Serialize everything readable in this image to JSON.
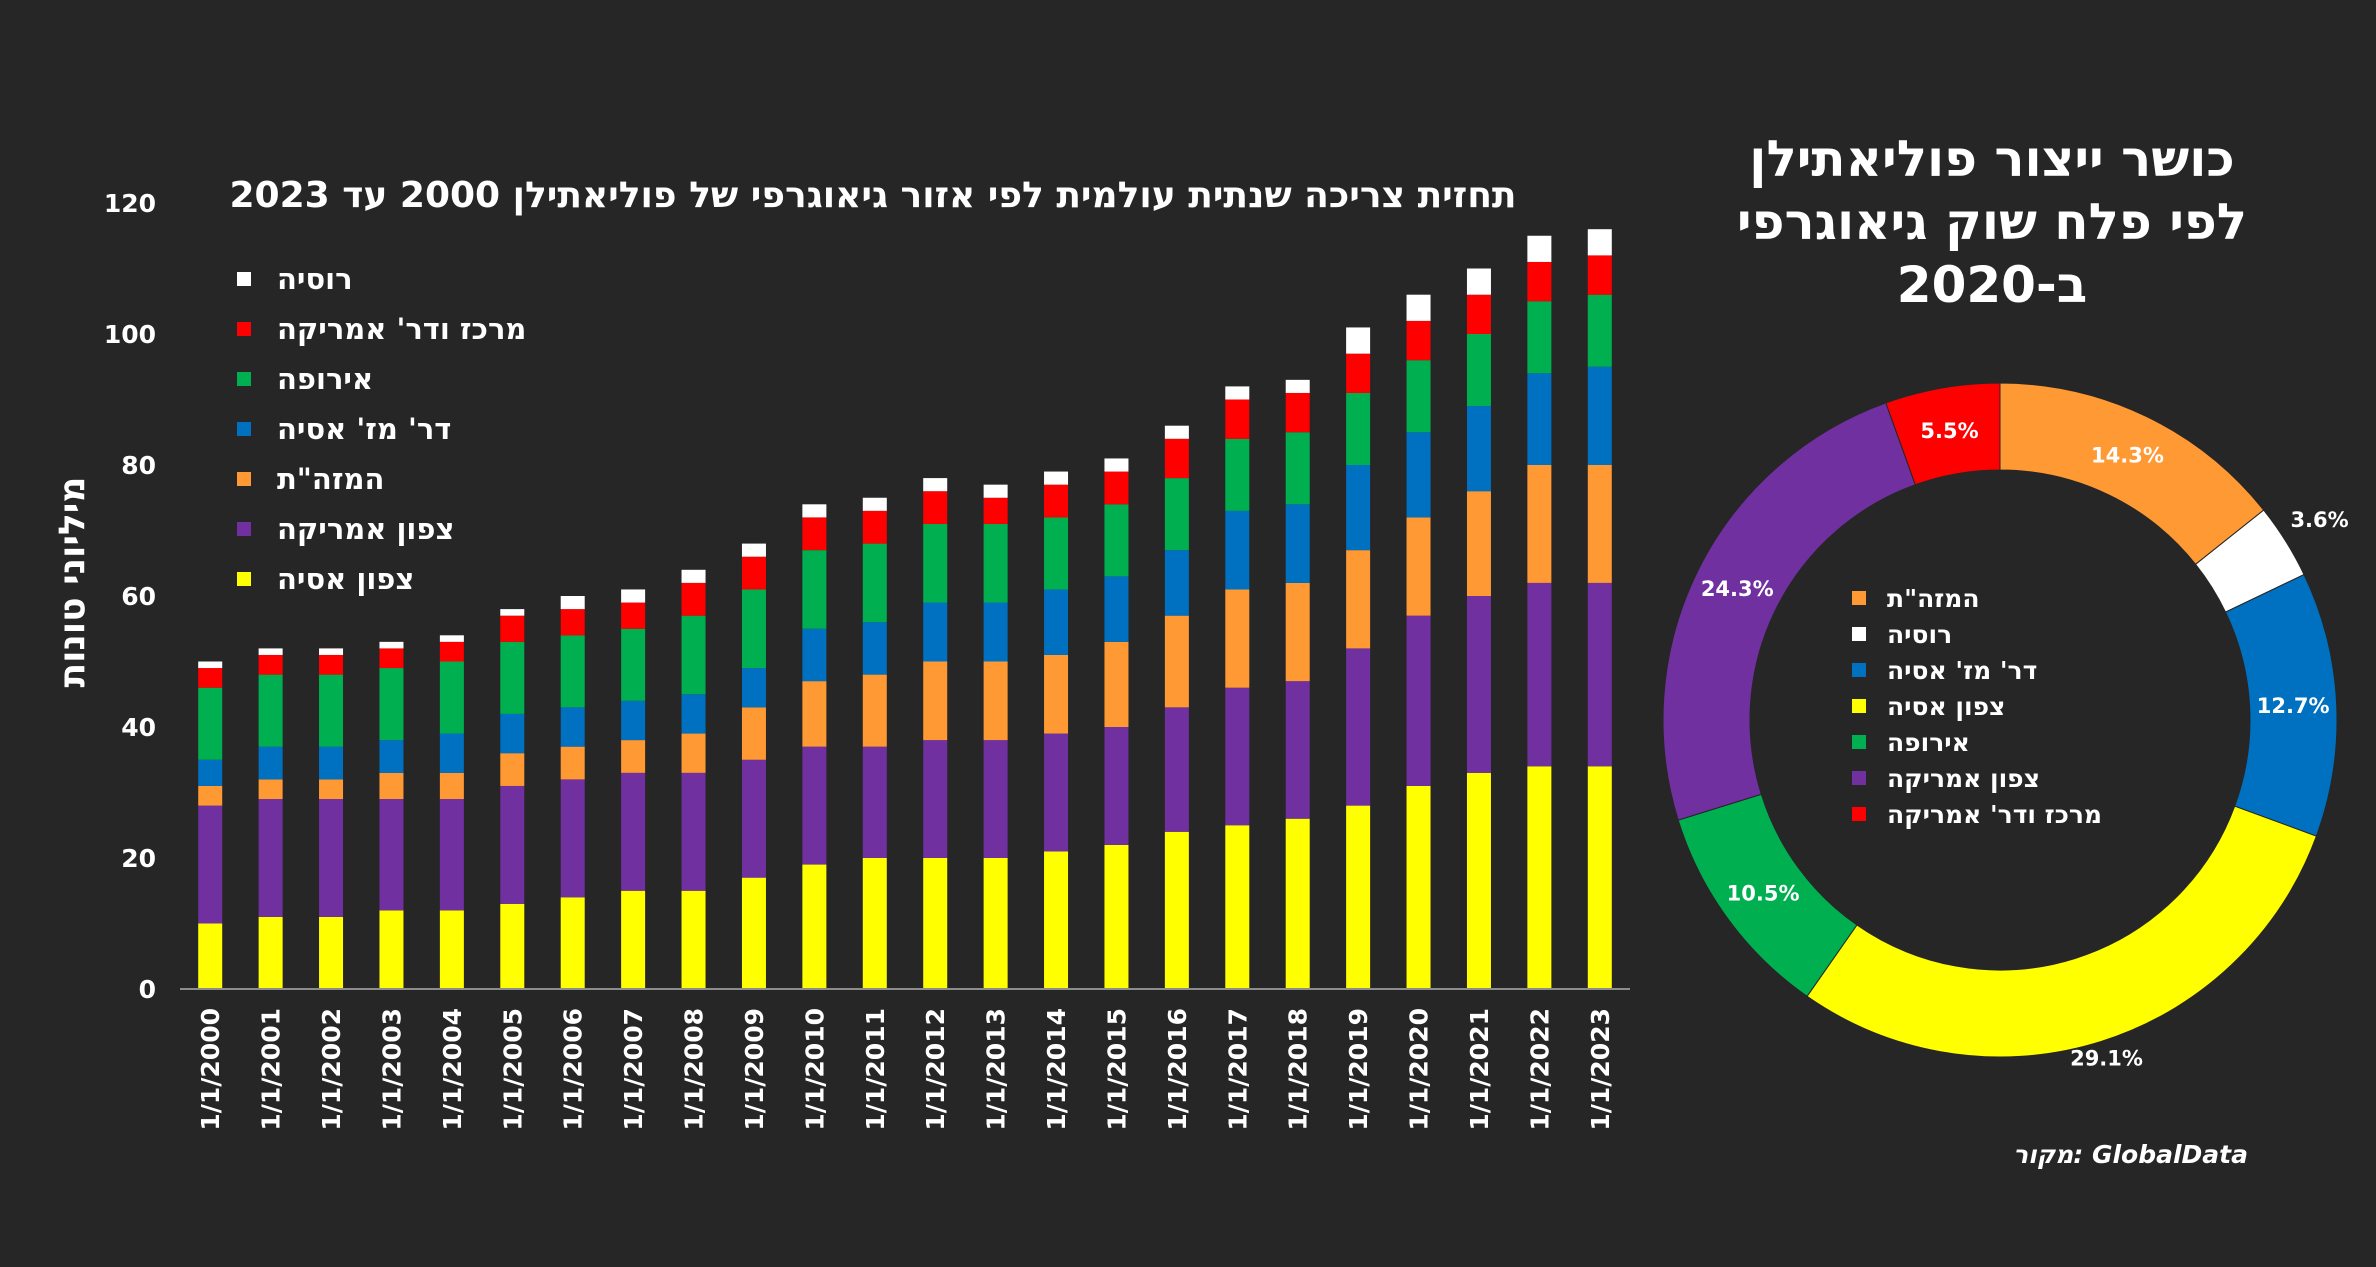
{
  "colors": {
    "background": "#262626",
    "russia": "#ffffff",
    "latam": "#ff0000",
    "europe": "#00b050",
    "sea": "#0070c0",
    "mideast": "#ff9933",
    "na": "#7030a0",
    "nea": "#ffff00"
  },
  "source_text": "מקור: GlobalData",
  "chart_data": [
    {
      "type": "bar",
      "stacked": true,
      "title": "תחזית צריכה שנתית עולמית לפי אזור גיאוגרפי של פוליאתילן 2000 עד 2023",
      "xlabel": "",
      "ylabel": "מיליוני טונות",
      "ylim": [
        0,
        120
      ],
      "yticks": [
        "0",
        "20",
        "40",
        "60",
        "80",
        "100",
        "120"
      ],
      "legend_position": "top-left",
      "categories": [
        "1/1/2000",
        "1/1/2001",
        "1/1/2002",
        "1/1/2003",
        "1/1/2004",
        "1/1/2005",
        "1/1/2006",
        "1/1/2007",
        "1/1/2008",
        "1/1/2009",
        "1/1/2010",
        "1/1/2011",
        "1/1/2012",
        "1/1/2013",
        "1/1/2014",
        "1/1/2015",
        "1/1/2016",
        "1/1/2017",
        "1/1/2018",
        "1/1/2019",
        "1/1/2020",
        "1/1/2021",
        "1/1/2022",
        "1/1/2023"
      ],
      "series": [
        {
          "name": "צפון אסיה",
          "color": "#ffff00",
          "values": [
            10,
            11,
            11,
            12,
            12,
            13,
            14,
            15,
            15,
            17,
            19,
            20,
            20,
            20,
            21,
            22,
            24,
            25,
            26,
            28,
            31,
            33,
            34,
            34
          ]
        },
        {
          "name": "צפון אמריקה",
          "color": "#7030a0",
          "values": [
            18,
            18,
            18,
            17,
            17,
            18,
            18,
            18,
            18,
            18,
            18,
            17,
            18,
            18,
            18,
            18,
            19,
            21,
            21,
            24,
            26,
            27,
            28,
            28
          ]
        },
        {
          "name": "המזה\"ת",
          "color": "#ff9933",
          "values": [
            3,
            3,
            3,
            4,
            4,
            5,
            5,
            5,
            6,
            8,
            10,
            11,
            12,
            12,
            12,
            13,
            14,
            15,
            15,
            15,
            15,
            16,
            18,
            18
          ]
        },
        {
          "name": "דר' מז' אסיה",
          "color": "#0070c0",
          "values": [
            4,
            5,
            5,
            5,
            6,
            6,
            6,
            6,
            6,
            6,
            8,
            8,
            9,
            9,
            10,
            10,
            10,
            12,
            12,
            13,
            13,
            13,
            14,
            15
          ]
        },
        {
          "name": "אירופה",
          "color": "#00b050",
          "values": [
            11,
            11,
            11,
            11,
            11,
            11,
            11,
            11,
            12,
            12,
            12,
            12,
            12,
            12,
            11,
            11,
            11,
            11,
            11,
            11,
            11,
            11,
            11,
            11
          ]
        },
        {
          "name": "מרכז ודר' אמריקה",
          "color": "#ff0000",
          "values": [
            3,
            3,
            3,
            3,
            3,
            4,
            4,
            4,
            5,
            5,
            5,
            5,
            5,
            4,
            5,
            5,
            6,
            6,
            6,
            6,
            6,
            6,
            6,
            6
          ]
        },
        {
          "name": "רוסיה",
          "color": "#ffffff",
          "values": [
            1,
            1,
            1,
            1,
            1,
            1,
            2,
            2,
            2,
            2,
            2,
            2,
            2,
            2,
            2,
            2,
            2,
            2,
            2,
            4,
            4,
            4,
            4,
            4
          ]
        }
      ]
    },
    {
      "type": "pie",
      "donut": true,
      "title": "כושר ייצור פוליאתילן לפי פלח שוק גיאוגרפי ב-2020",
      "legend_position": "center",
      "slices": [
        {
          "name": "המזה\"ת",
          "value": 14.3,
          "label": "14.3%",
          "color": "#ff9933"
        },
        {
          "name": "רוסיה",
          "value": 3.6,
          "label": "3.6%",
          "color": "#ffffff"
        },
        {
          "name": "דר' מז' אסיה",
          "value": 12.7,
          "label": "12.7%",
          "color": "#0070c0"
        },
        {
          "name": "צפון אסיה",
          "value": 29.1,
          "label": "29.1%",
          "color": "#ffff00"
        },
        {
          "name": "אירופה",
          "value": 10.5,
          "label": "10.5%",
          "color": "#00b050"
        },
        {
          "name": "צפון אמריקה",
          "value": 24.3,
          "label": "24.3%",
          "color": "#7030a0"
        },
        {
          "name": "מרכז ודר' אמריקה",
          "value": 5.5,
          "label": "5.5%",
          "color": "#ff0000"
        }
      ]
    }
  ]
}
